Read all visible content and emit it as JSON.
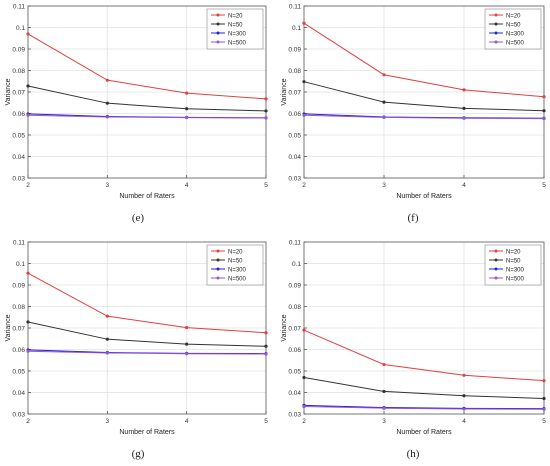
{
  "chart_data": [
    {
      "panel": "(e)",
      "type": "line",
      "xlabel": "Number of Raters",
      "ylabel": "Variance",
      "x": [
        2,
        3,
        4,
        5
      ],
      "xlim": [
        2,
        5
      ],
      "ylim": [
        0.03,
        0.11
      ],
      "yticks": [
        "0.03",
        "0.04",
        "0.05",
        "0.06",
        "0.07",
        "0.08",
        "0.09",
        "0.1",
        "0.11"
      ],
      "xticks": [
        "2",
        "3",
        "4",
        "5"
      ],
      "legend_position": "top-right",
      "series": [
        {
          "name": "N=20",
          "color": "#e04040",
          "values": [
            0.097,
            0.0755,
            0.0695,
            0.0668
          ]
        },
        {
          "name": "N=50",
          "color": "#333333",
          "values": [
            0.0728,
            0.0648,
            0.0622,
            0.0612
          ]
        },
        {
          "name": "N=300",
          "color": "#2222dd",
          "values": [
            0.0598,
            0.0586,
            0.0582,
            0.058
          ]
        },
        {
          "name": "N=500",
          "color": "#9955cc",
          "values": [
            0.0592,
            0.0584,
            0.0581,
            0.0579
          ]
        }
      ]
    },
    {
      "panel": "(f)",
      "type": "line",
      "xlabel": "Number of Raters",
      "ylabel": "Variance",
      "x": [
        2,
        3,
        4,
        5
      ],
      "xlim": [
        2,
        5
      ],
      "ylim": [
        0.03,
        0.11
      ],
      "yticks": [
        "0.03",
        "0.04",
        "0.05",
        "0.06",
        "0.07",
        "0.08",
        "0.09",
        "0.1",
        "0.11"
      ],
      "xticks": [
        "2",
        "3",
        "4",
        "5"
      ],
      "legend_position": "top-right",
      "series": [
        {
          "name": "N=20",
          "color": "#e04040",
          "values": [
            0.102,
            0.078,
            0.071,
            0.0678
          ]
        },
        {
          "name": "N=50",
          "color": "#333333",
          "values": [
            0.0748,
            0.0653,
            0.0624,
            0.0613
          ]
        },
        {
          "name": "N=300",
          "color": "#2222dd",
          "values": [
            0.0598,
            0.0584,
            0.058,
            0.0578
          ]
        },
        {
          "name": "N=500",
          "color": "#9955cc",
          "values": [
            0.0592,
            0.0582,
            0.0578,
            0.0576
          ]
        }
      ]
    },
    {
      "panel": "(g)",
      "type": "line",
      "xlabel": "Number of Raters",
      "ylabel": "Variance",
      "x": [
        2,
        3,
        4,
        5
      ],
      "xlim": [
        2,
        5
      ],
      "ylim": [
        0.03,
        0.11
      ],
      "yticks": [
        "0.03",
        "0.04",
        "0.05",
        "0.06",
        "0.07",
        "0.08",
        "0.09",
        "0.1",
        "0.11"
      ],
      "xticks": [
        "2",
        "3",
        "4",
        "5"
      ],
      "legend_position": "top-right",
      "series": [
        {
          "name": "N=20",
          "color": "#e04040",
          "values": [
            0.0955,
            0.0755,
            0.0702,
            0.0678
          ]
        },
        {
          "name": "N=50",
          "color": "#333333",
          "values": [
            0.0728,
            0.0648,
            0.0625,
            0.0615
          ]
        },
        {
          "name": "N=300",
          "color": "#2222dd",
          "values": [
            0.0598,
            0.0586,
            0.0582,
            0.0581
          ]
        },
        {
          "name": "N=500",
          "color": "#9955cc",
          "values": [
            0.0592,
            0.0584,
            0.058,
            0.0579
          ]
        }
      ]
    },
    {
      "panel": "(h)",
      "type": "line",
      "xlabel": "Number of Raters",
      "ylabel": "Variance",
      "x": [
        2,
        3,
        4,
        5
      ],
      "xlim": [
        2,
        5
      ],
      "ylim": [
        0.03,
        0.11
      ],
      "yticks": [
        "0.03",
        "0.04",
        "0.05",
        "0.06",
        "0.07",
        "0.08",
        "0.09",
        "0.1",
        "0.11"
      ],
      "xticks": [
        "2",
        "3",
        "4",
        "5"
      ],
      "legend_position": "top-right",
      "series": [
        {
          "name": "N=20",
          "color": "#e04040",
          "values": [
            0.069,
            0.053,
            0.048,
            0.0455
          ]
        },
        {
          "name": "N=50",
          "color": "#333333",
          "values": [
            0.047,
            0.0405,
            0.0385,
            0.0372
          ]
        },
        {
          "name": "N=300",
          "color": "#2222dd",
          "values": [
            0.034,
            0.033,
            0.0326,
            0.0325
          ]
        },
        {
          "name": "N=500",
          "color": "#9955cc",
          "values": [
            0.0335,
            0.0327,
            0.0323,
            0.0322
          ]
        }
      ]
    }
  ]
}
